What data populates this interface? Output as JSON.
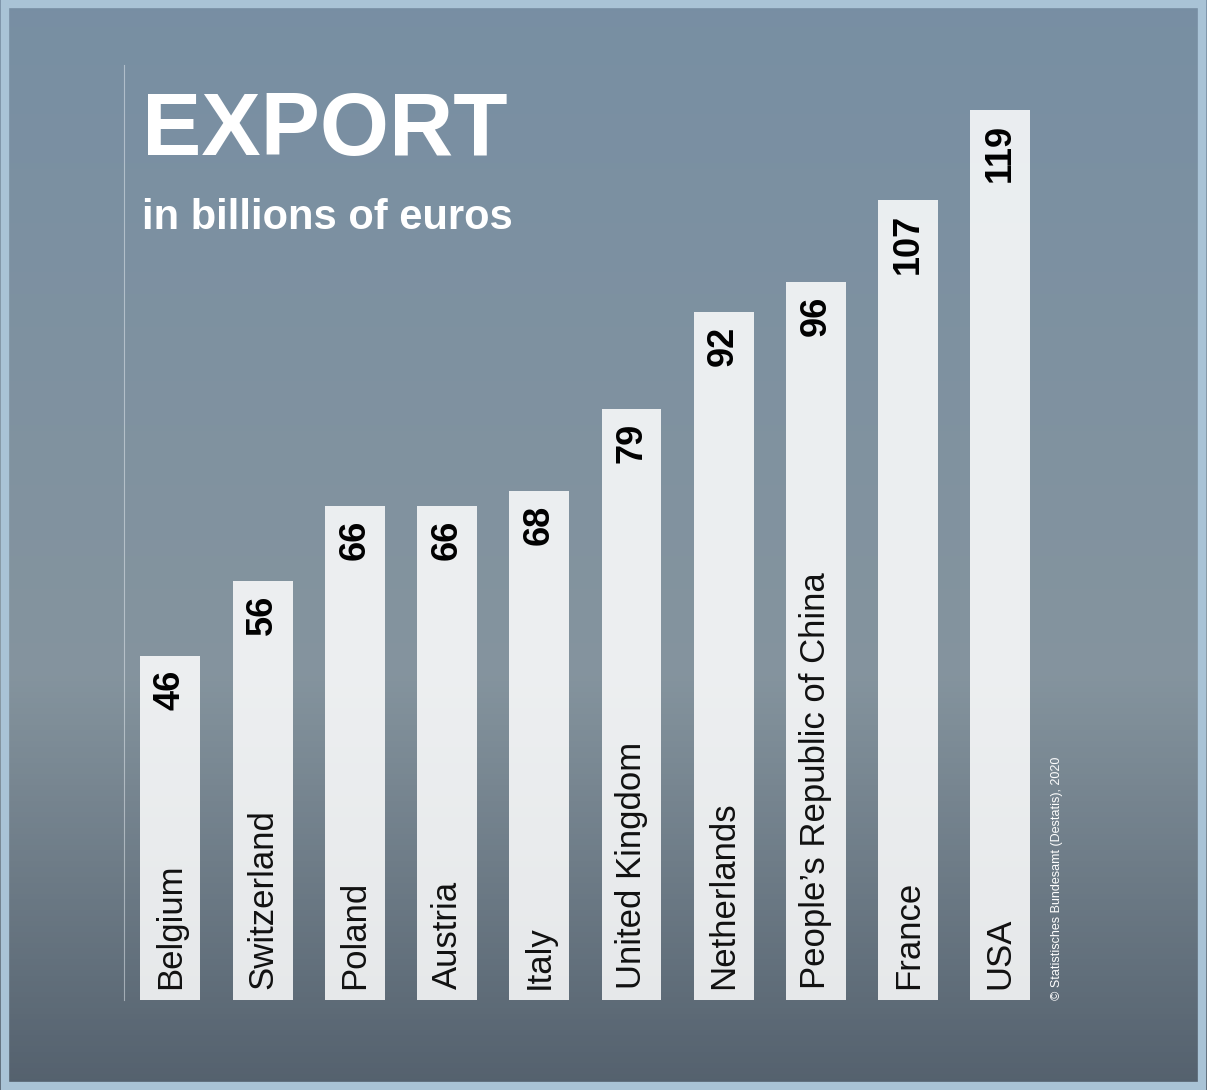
{
  "chart_data": {
    "type": "bar",
    "title": "EXPORT",
    "subtitle": "in billions of euros",
    "categories": [
      "Belgium",
      "Switzerland",
      "Poland",
      "Austria",
      "Italy",
      "United Kingdom",
      "Netherlands",
      "People’s Republic of China",
      "France",
      "USA"
    ],
    "values": [
      46,
      56,
      66,
      66,
      68,
      79,
      92,
      96,
      107,
      119
    ],
    "color": "#ffffff",
    "ylim": [
      0,
      125
    ],
    "grid": false,
    "data_labels": true,
    "tick_labels": false,
    "source": "© Statistisches Bundesamt (Destatis), 2020"
  }
}
